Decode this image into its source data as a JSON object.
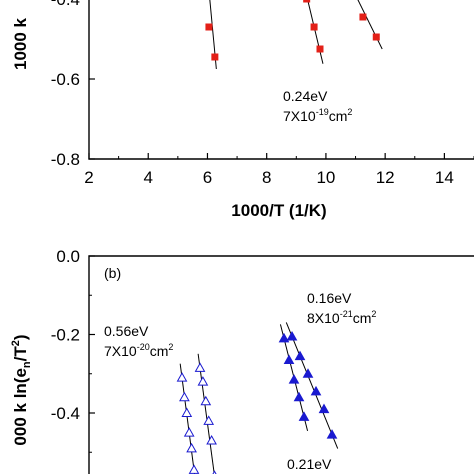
{
  "chart_data": [
    {
      "type": "scatter",
      "panel": "a",
      "xlabel": "1000/T (1/K)",
      "ylabel": "1000 k",
      "xlim": [
        2,
        15
      ],
      "ylim": [
        -0.8,
        -0.32
      ],
      "x_ticks": [
        "2",
        "4",
        "6",
        "8",
        "10",
        "12",
        "14"
      ],
      "y_ticks": [
        "-0.4",
        "-0.6",
        "-0.8"
      ],
      "marker_color": "#e32018",
      "line_color": "#000000",
      "series": [
        {
          "points": [
            [
              6.05,
              -0.47
            ],
            [
              6.25,
              -0.545
            ]
          ],
          "fit": [
            [
              5.95,
              -0.3
            ],
            [
              6.3,
              -0.575
            ]
          ]
        },
        {
          "points": [
            [
              9.35,
              -0.4
            ],
            [
              9.6,
              -0.47
            ],
            [
              9.8,
              -0.525
            ]
          ],
          "fit": [
            [
              9.15,
              -0.33
            ],
            [
              9.9,
              -0.562
            ]
          ]
        },
        {
          "points": [
            [
              11.25,
              -0.445
            ],
            [
              11.7,
              -0.495
            ]
          ],
          "fit": [
            [
              10.9,
              -0.375
            ],
            [
              11.9,
              -0.525
            ]
          ]
        }
      ],
      "annotations": [
        {
          "text": "0.24eV",
          "x": 9.95,
          "y": -0.655
        },
        {
          "text": "7X10",
          "sup": "-19",
          "suffix": "cm",
          "sup2": "2",
          "x": 9.95,
          "y": -0.705
        }
      ]
    },
    {
      "type": "scatter",
      "panel": "b",
      "panel_label": "(b)",
      "xlabel": "",
      "ylabel": "000 k ln(e",
      "ylabel_sub": "n",
      "ylabel_mid": "/T",
      "ylabel_sup": "2",
      "ylabel_end": ")",
      "ylim": [
        -0.6,
        0.0
      ],
      "y_ticks": [
        "0.0",
        "-0.2",
        "-0.4"
      ],
      "marker_color": "#1a1ad0",
      "line_color": "#000000",
      "series": [
        {
          "marker": "open-triangle",
          "points": [
            [
              -0.31
            ],
            [
              -0.36
            ],
            [
              -0.4
            ],
            [
              -0.45
            ],
            [
              -0.49
            ],
            [
              -0.545
            ]
          ]
        },
        {
          "marker": "open-triangle",
          "points": [
            [
              -0.285
            ],
            [
              -0.32
            ],
            [
              -0.37
            ],
            [
              -0.42
            ],
            [
              -0.47
            ],
            [
              -0.56
            ]
          ]
        },
        {
          "marker": "filled-triangle",
          "points": [
            [
              -0.21
            ],
            [
              -0.265
            ],
            [
              -0.315
            ],
            [
              -0.36
            ],
            [
              -0.41
            ]
          ]
        },
        {
          "marker": "filled-triangle",
          "points": [
            [
              -0.205
            ],
            [
              -0.255
            ],
            [
              -0.3
            ],
            [
              -0.345
            ],
            [
              -0.39
            ],
            [
              -0.455
            ]
          ]
        }
      ],
      "annotations": [
        {
          "text": "0.16eV",
          "y_label": "0.16eV"
        },
        {
          "text": "8X10",
          "sup": "-21",
          "suffix": "cm",
          "sup2": "2"
        },
        {
          "text": "0.56eV"
        },
        {
          "text": "7X10",
          "sup": "-20",
          "suffix": "cm",
          "sup2": "2"
        },
        {
          "text": "0.21eV"
        }
      ]
    }
  ]
}
